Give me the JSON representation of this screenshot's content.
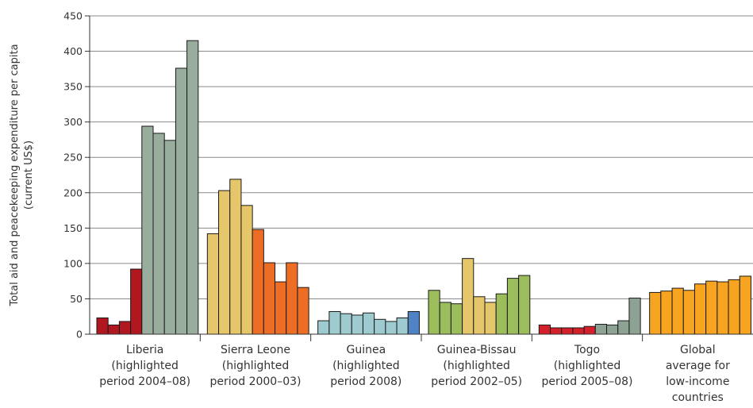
{
  "chart_data": {
    "type": "bar",
    "ylabel_line1": "Total aid and peacekeeping expenditure per capita",
    "ylabel_line2": "(current US$)",
    "ylim": [
      0,
      450
    ],
    "yticks": [
      0,
      50,
      100,
      150,
      200,
      250,
      300,
      350,
      400,
      450
    ],
    "grid": true,
    "groups": [
      {
        "label_lines": [
          "Liberia",
          "(highlighted",
          "period 2004–08)"
        ],
        "values": [
          23,
          13,
          18,
          92,
          294,
          284,
          274,
          376,
          415
        ],
        "colors": [
          "#b0171f",
          "#b0171f",
          "#b0171f",
          "#b0171f",
          "#99ad9e",
          "#99ad9e",
          "#99ad9e",
          "#99ad9e",
          "#99ad9e"
        ]
      },
      {
        "label_lines": [
          "Sierra Leone",
          "(highlighted",
          "period 2000–03)"
        ],
        "values": [
          142,
          203,
          219,
          182,
          148,
          101,
          74,
          101,
          66
        ],
        "colors": [
          "#e6c66a",
          "#e6c66a",
          "#e6c66a",
          "#e6c66a",
          "#ee6d25",
          "#ee6d25",
          "#ee6d25",
          "#ee6d25",
          "#ee6d25"
        ]
      },
      {
        "label_lines": [
          "Guinea",
          "(highlighted",
          "period 2008)"
        ],
        "values": [
          19,
          32,
          29,
          27,
          30,
          21,
          18,
          23,
          32
        ],
        "colors": [
          "#9ecbd0",
          "#9ecbd0",
          "#9ecbd0",
          "#9ecbd0",
          "#9ecbd0",
          "#9ecbd0",
          "#9ecbd0",
          "#9ecbd0",
          "#4f83c5"
        ]
      },
      {
        "label_lines": [
          "Guinea-Bissau",
          "(highlighted",
          "period 2002–05)"
        ],
        "values": [
          62,
          45,
          43,
          107,
          53,
          45,
          57,
          79,
          83
        ],
        "colors": [
          "#9bbd5c",
          "#9bbd5c",
          "#9bbd5c",
          "#e6c66a",
          "#e6c66a",
          "#e6c66a",
          "#9bbd5c",
          "#9bbd5c",
          "#9bbd5c"
        ]
      },
      {
        "label_lines": [
          "Togo",
          "(highlighted",
          "period 2005–08)"
        ],
        "values": [
          13,
          9,
          9,
          9,
          11,
          14,
          13,
          19,
          51
        ],
        "colors": [
          "#d4202a",
          "#d4202a",
          "#d4202a",
          "#d4202a",
          "#d4202a",
          "#8ea294",
          "#8ea294",
          "#8ea294",
          "#8ea294"
        ]
      },
      {
        "label_lines": [
          "Global",
          "average for",
          "low-income",
          "countries"
        ],
        "values": [
          59,
          61,
          65,
          62,
          71,
          75,
          74,
          77,
          82
        ],
        "colors": [
          "#f7a520",
          "#f7a520",
          "#f7a520",
          "#f7a520",
          "#f7a520",
          "#f7a520",
          "#f7a520",
          "#f7a520",
          "#f7a520"
        ]
      }
    ]
  }
}
